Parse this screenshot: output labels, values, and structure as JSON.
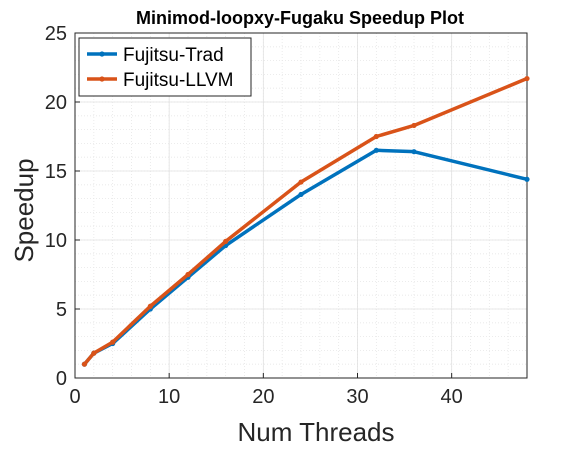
{
  "chart_data": {
    "type": "line",
    "title": "Minimod-loopxy-Fugaku Speedup Plot",
    "xlabel": "Num Threads",
    "ylabel": "Speedup",
    "xlim": [
      0,
      48
    ],
    "ylim": [
      0,
      25
    ],
    "xticks": [
      0,
      10,
      20,
      30,
      40
    ],
    "yticks": [
      0,
      5,
      10,
      15,
      20,
      25
    ],
    "grid": "minor",
    "legend_position": "top-left",
    "x": [
      1,
      2,
      4,
      8,
      12,
      16,
      24,
      32,
      36,
      48
    ],
    "series": [
      {
        "name": "Fujitsu-Trad",
        "color": "#0072BD",
        "values": [
          1.0,
          1.8,
          2.5,
          5.0,
          7.3,
          9.6,
          13.3,
          16.5,
          16.4,
          14.4
        ]
      },
      {
        "name": "Fujitsu-LLVM",
        "color": "#D95319",
        "values": [
          1.0,
          1.8,
          2.6,
          5.2,
          7.5,
          9.9,
          14.2,
          17.5,
          18.3,
          21.7
        ]
      }
    ]
  }
}
